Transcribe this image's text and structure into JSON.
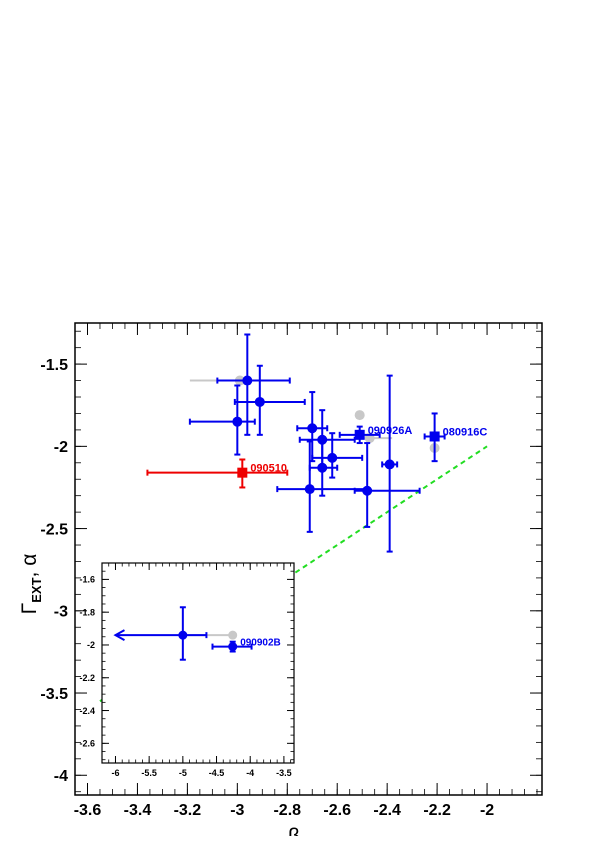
{
  "chart_data": {
    "type": "scatter",
    "xlabel": "β",
    "ylabel": "Γ",
    "ylabel_sub": "EXT",
    "ylabel_tail": ", α",
    "xlim": [
      -3.65,
      -1.78
    ],
    "ylim": [
      -4.12,
      -1.25
    ],
    "xticks": [
      -3.6,
      -3.4,
      -3.2,
      -3.0,
      -2.8,
      -2.6,
      -2.4,
      -2.2,
      -2.0
    ],
    "xtick_labels": [
      "-3.6",
      "-3.4",
      "-3.2",
      "-3",
      "-2.8",
      "-2.6",
      "-2.4",
      "-2.2",
      "-2"
    ],
    "yticks": [
      -1.5,
      -2.0,
      -2.5,
      -3.0,
      -3.5,
      -4.0
    ],
    "ytick_labels": [
      "-1.5",
      "-2",
      "-2.5",
      "-3",
      "-3.5",
      "-4"
    ],
    "colors": {
      "blue": "#0000ee",
      "red": "#ee0000",
      "gray": "#c8c8c8",
      "green": "#22dd22"
    },
    "reference_line": {
      "style": "dashed",
      "color": "#22dd22",
      "x": [
        -3.55,
        -2.0
      ],
      "y": [
        -3.55,
        -2.0
      ]
    },
    "gray_points": [
      {
        "x": -2.99,
        "y": -1.6,
        "xerr_lo": 0.2
      },
      {
        "x": -2.51,
        "y": -1.81
      },
      {
        "x": -2.47,
        "y": -1.95,
        "xerr_hi": 0.09
      },
      {
        "x": -2.21,
        "y": -2.01
      }
    ],
    "points": [
      {
        "x": -2.96,
        "y": -1.6,
        "xerr": [
          0.12,
          0.17
        ],
        "yerr": [
          0.33,
          0.28
        ],
        "marker": "circle",
        "color": "blue"
      },
      {
        "x": -2.91,
        "y": -1.73,
        "xerr": [
          0.1,
          0.18
        ],
        "yerr": [
          0.2,
          0.22
        ],
        "marker": "circle",
        "color": "blue"
      },
      {
        "x": -3.0,
        "y": -1.85,
        "xerr": [
          0.19,
          0.07
        ],
        "yerr": [
          0.2,
          0.22
        ],
        "marker": "circle",
        "color": "blue"
      },
      {
        "x": -2.98,
        "y": -2.16,
        "xerr": [
          0.38,
          0.18
        ],
        "yerr": [
          0.09,
          0.08
        ],
        "marker": "square",
        "color": "red",
        "label": "090510"
      },
      {
        "x": -2.51,
        "y": -1.93,
        "xerr": [
          0.08,
          0.08
        ],
        "yerr": [
          0.05,
          0.05
        ],
        "marker": "square",
        "color": "blue",
        "label": "090926A"
      },
      {
        "x": -2.21,
        "y": -1.94,
        "xerr": [
          0.04,
          0.04
        ],
        "yerr": [
          0.15,
          0.14
        ],
        "marker": "square",
        "color": "blue",
        "label": "080916C"
      },
      {
        "x": -2.7,
        "y": -1.89,
        "xerr": [
          0.06,
          0.06
        ],
        "yerr": [
          0.2,
          0.22
        ],
        "marker": "circle",
        "color": "blue"
      },
      {
        "x": -2.66,
        "y": -1.96,
        "xerr": [
          0.09,
          0.13
        ],
        "yerr": [
          0.17,
          0.18
        ],
        "marker": "circle",
        "color": "blue"
      },
      {
        "x": -2.62,
        "y": -2.07,
        "xerr": [
          0.08,
          0.12
        ],
        "yerr": [
          0.12,
          0.15
        ],
        "marker": "circle",
        "color": "blue"
      },
      {
        "x": -2.66,
        "y": -2.13,
        "xerr": [
          0.05,
          0.06
        ],
        "yerr": [
          0.17,
          0.18
        ],
        "marker": "circle",
        "color": "blue"
      },
      {
        "x": -2.71,
        "y": -2.26,
        "xerr": [
          0.13,
          0.23
        ],
        "yerr": [
          0.26,
          0.29
        ],
        "marker": "circle",
        "color": "blue"
      },
      {
        "x": -2.48,
        "y": -2.27,
        "xerr": [
          0.05,
          0.21
        ],
        "yerr": [
          0.22,
          0.29
        ],
        "marker": "circle",
        "color": "blue"
      },
      {
        "x": -2.39,
        "y": -2.11,
        "xerr": [
          0.03,
          0.03
        ],
        "yerr": [
          0.53,
          0.54
        ],
        "marker": "circle",
        "color": "blue"
      }
    ],
    "inset": {
      "xlim": [
        -6.2,
        -3.35
      ],
      "ylim": [
        -2.72,
        -1.5
      ],
      "xticks": [
        -6,
        -5.5,
        -5,
        -4.5,
        -4,
        -3.5
      ],
      "xtick_labels": [
        "-6",
        "-5.5",
        "-5",
        "-4.5",
        "-4",
        "-3.5"
      ],
      "yticks": [
        -1.6,
        -1.8,
        -2.0,
        -2.2,
        -2.4,
        -2.6
      ],
      "ytick_labels": [
        "-1.6",
        "-1.8",
        "-2",
        "-2.2",
        "-2.4",
        "-2.6"
      ],
      "gray_points": [
        {
          "x": -4.26,
          "y": -1.94,
          "xerr_lo": 0.72
        }
      ],
      "points": [
        {
          "x": -5.0,
          "y": -1.94,
          "xerr": [
            1.0,
            0.35
          ],
          "yerr": [
            0.15,
            0.17
          ],
          "marker": "circle",
          "color": "blue",
          "upper_limit_arrow": true
        },
        {
          "x": -4.26,
          "y": -2.01,
          "xerr": [
            0.3,
            0.28
          ],
          "yerr": [
            0.03,
            0.03
          ],
          "marker": "circle",
          "color": "blue",
          "label": "090902B"
        }
      ]
    }
  }
}
